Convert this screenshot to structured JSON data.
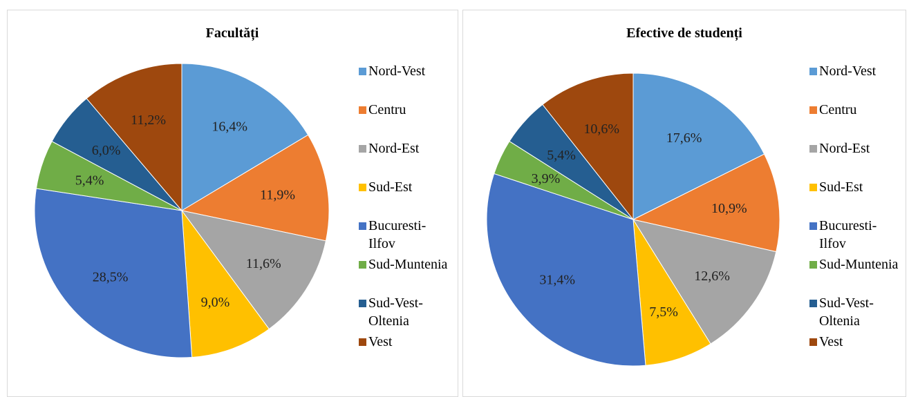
{
  "chart_data": [
    {
      "type": "pie",
      "title": "Facultăți",
      "categories": [
        "Nord-Vest",
        "Centru",
        "Nord-Est",
        "Sud-Est",
        "Bucuresti-Ilfov",
        "Sud-Muntenia",
        "Sud-Vest-Oltenia",
        "Vest"
      ],
      "values": [
        16.4,
        11.9,
        11.6,
        9.0,
        28.5,
        5.4,
        6.0,
        11.2
      ],
      "value_labels": [
        "16,4%",
        "11,9%",
        "11,6%",
        "9,0%",
        "28,5%",
        "5,4%",
        "6,0%",
        "11,2%"
      ],
      "colors": [
        "#5b9bd5",
        "#ed7d31",
        "#a5a5a5",
        "#ffc000",
        "#4472c4",
        "#70ad47",
        "#255e91",
        "#9e480e"
      ],
      "legend": "right"
    },
    {
      "type": "pie",
      "title": "Efective de studenți",
      "categories": [
        "Nord-Vest",
        "Centru",
        "Nord-Est",
        "Sud-Est",
        "Bucuresti-Ilfov",
        "Sud-Muntenia",
        "Sud-Vest-Oltenia",
        "Vest"
      ],
      "values": [
        17.6,
        10.9,
        12.6,
        7.5,
        31.4,
        3.9,
        5.4,
        10.6
      ],
      "value_labels": [
        "17,6%",
        "10,9%",
        "12,6%",
        "7,5%",
        "31,4%",
        "3,9%",
        "5,4%",
        "10,6%"
      ],
      "colors": [
        "#5b9bd5",
        "#ed7d31",
        "#a5a5a5",
        "#ffc000",
        "#4472c4",
        "#70ad47",
        "#255e91",
        "#9e480e"
      ],
      "legend": "right"
    }
  ]
}
